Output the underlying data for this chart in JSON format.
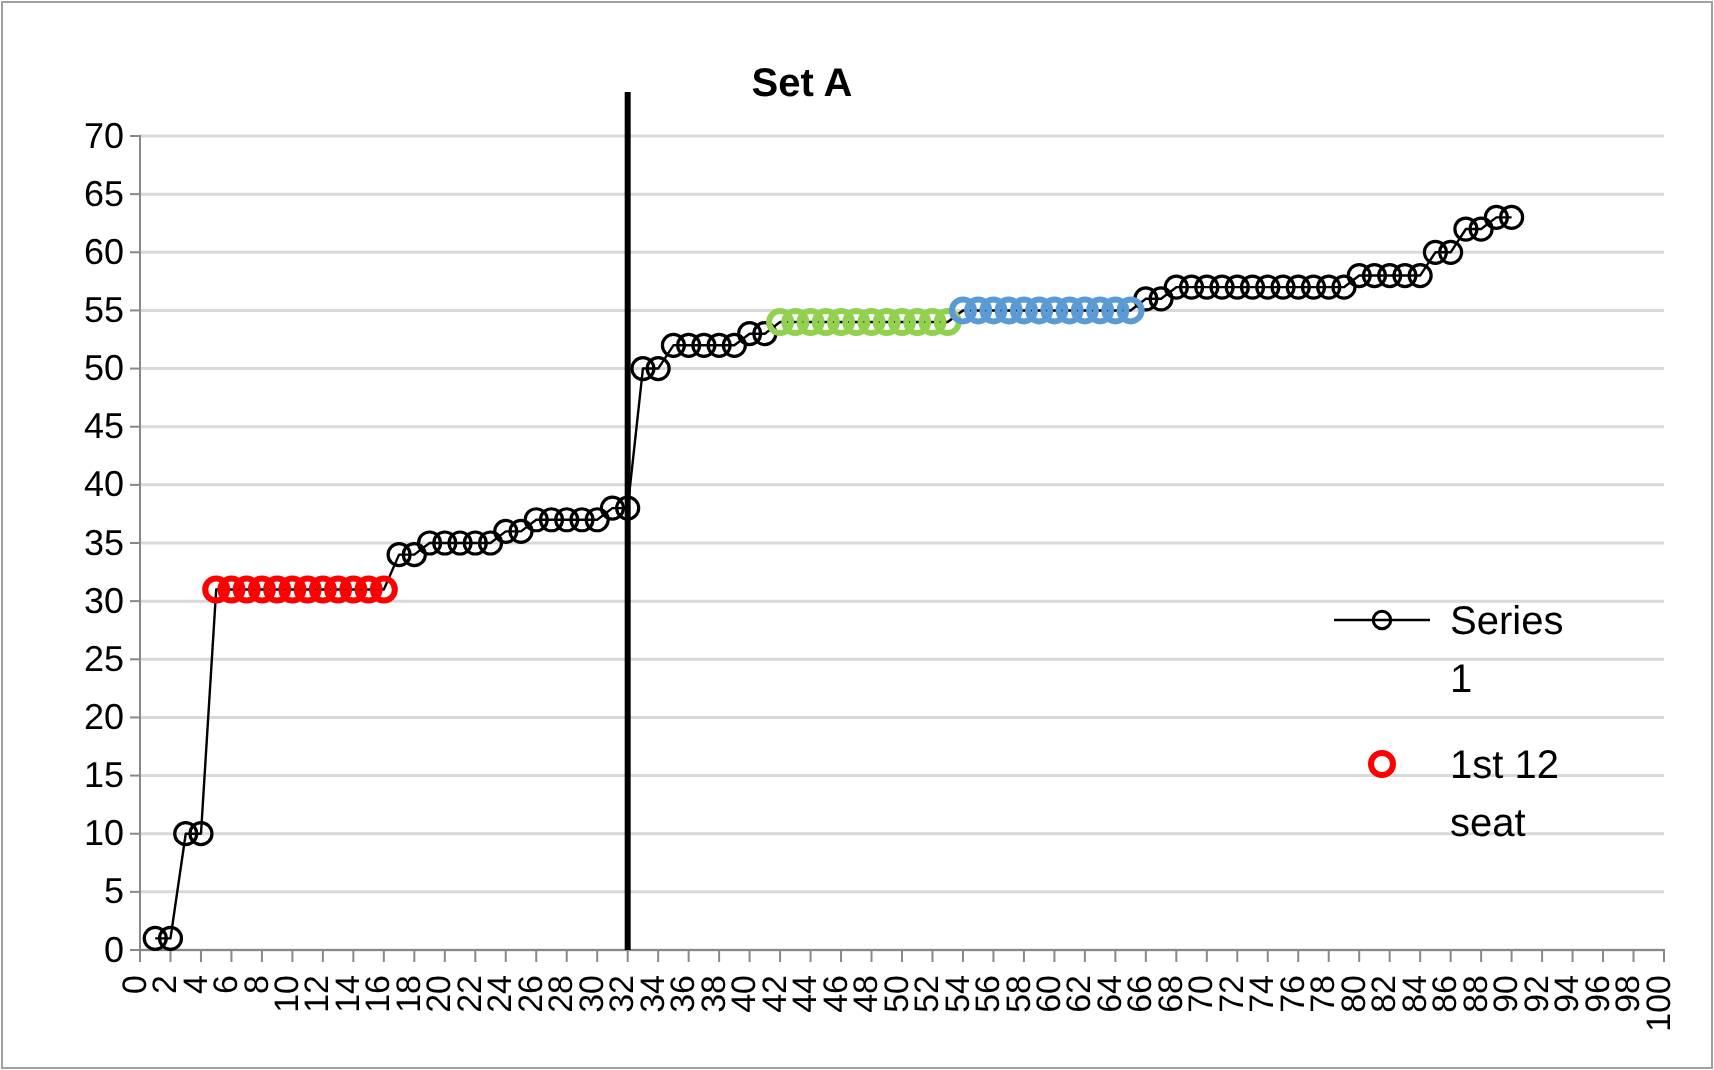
{
  "chart_data": {
    "type": "line",
    "title": "Set A",
    "xlim": [
      0,
      100
    ],
    "xticks": [
      0,
      2,
      4,
      6,
      8,
      10,
      12,
      14,
      16,
      18,
      20,
      22,
      24,
      26,
      28,
      30,
      32,
      34,
      36,
      38,
      40,
      42,
      44,
      46,
      48,
      50,
      52,
      54,
      56,
      58,
      60,
      62,
      64,
      66,
      68,
      70,
      72,
      74,
      76,
      78,
      80,
      82,
      84,
      86,
      88,
      90,
      92,
      94,
      96,
      98,
      100
    ],
    "ylim": [
      0,
      70
    ],
    "yticks": [
      0,
      5,
      10,
      15,
      20,
      25,
      30,
      35,
      40,
      45,
      50,
      55,
      60,
      65,
      70
    ],
    "grid": "y",
    "legend": "right",
    "marker": "circle",
    "line_style": "solid",
    "ref_lines": [
      {
        "axis": "x",
        "value": 32,
        "color": "#000000"
      }
    ],
    "series": [
      {
        "name": "Series 1",
        "color": "#000000",
        "x": [
          1,
          2,
          3,
          4,
          5,
          6,
          7,
          8,
          9,
          10,
          11,
          12,
          13,
          14,
          15,
          16,
          17,
          18,
          19,
          20,
          21,
          22,
          23,
          24,
          25,
          26,
          27,
          28,
          29,
          30,
          31,
          32,
          33,
          34,
          35,
          36,
          37,
          38,
          39,
          40,
          41,
          42,
          43,
          44,
          45,
          46,
          47,
          48,
          49,
          50,
          51,
          52,
          53,
          54,
          55,
          56,
          57,
          58,
          59,
          60,
          61,
          62,
          63,
          64,
          65,
          66,
          67,
          68,
          69,
          70,
          71,
          72,
          73,
          74,
          75,
          76,
          77,
          78,
          79,
          80,
          81,
          82,
          83,
          84,
          85,
          86,
          87,
          88,
          89,
          90
        ],
        "values": [
          1,
          1,
          10,
          10,
          31,
          31,
          31,
          31,
          31,
          31,
          31,
          31,
          31,
          31,
          31,
          31,
          34,
          34,
          35,
          35,
          35,
          35,
          35,
          36,
          36,
          37,
          37,
          37,
          37,
          37,
          38,
          38,
          50,
          50,
          52,
          52,
          52,
          52,
          52,
          53,
          53,
          54,
          54,
          54,
          54,
          54,
          54,
          54,
          54,
          54,
          54,
          54,
          54,
          55,
          55,
          55,
          55,
          55,
          55,
          55,
          55,
          55,
          55,
          55,
          55,
          56,
          56,
          57,
          57,
          57,
          57,
          57,
          57,
          57,
          57,
          57,
          57,
          57,
          57,
          58,
          58,
          58,
          58,
          58,
          60,
          60,
          62,
          62,
          63,
          63
        ]
      },
      {
        "name": "1st 12 seat",
        "type": "scatter",
        "color": "#ff0000",
        "x": [
          5,
          6,
          7,
          8,
          9,
          10,
          11,
          12,
          13,
          14,
          15,
          16
        ],
        "values": [
          31,
          31,
          31,
          31,
          31,
          31,
          31,
          31,
          31,
          31,
          31,
          31
        ]
      },
      {
        "type": "scatter",
        "color": "#92d050",
        "x": [
          42,
          43,
          44,
          45,
          46,
          47,
          48,
          49,
          50,
          51,
          52,
          53
        ],
        "values": [
          54,
          54,
          54,
          54,
          54,
          54,
          54,
          54,
          54,
          54,
          54,
          54
        ]
      },
      {
        "type": "scatter",
        "color": "#5b9bd5",
        "x": [
          54,
          55,
          56,
          57,
          58,
          59,
          60,
          61,
          62,
          63,
          64,
          65
        ],
        "values": [
          55,
          55,
          55,
          55,
          55,
          55,
          55,
          55,
          55,
          55,
          55,
          55
        ]
      }
    ]
  }
}
